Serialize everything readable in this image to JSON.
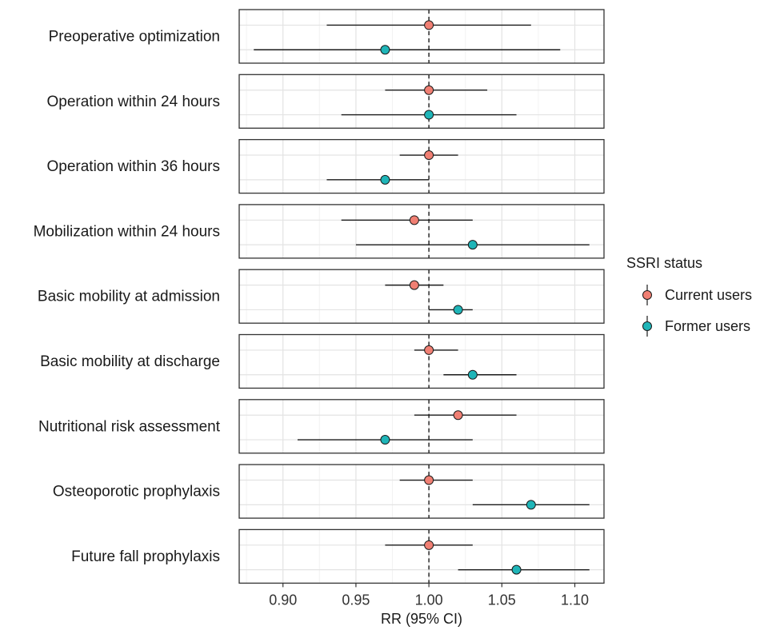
{
  "chart_data": {
    "type": "forest",
    "xlabel": "RR (95% CI)",
    "xlim": [
      0.87,
      1.12
    ],
    "xticks": [
      "0.90",
      "0.95",
      "1.00",
      "1.05",
      "1.10"
    ],
    "xtick_values": [
      0.9,
      0.95,
      1.0,
      1.05,
      1.1
    ],
    "reference_line": 1.0,
    "grid": true,
    "legend": {
      "title": "SSRI status",
      "placement": "right",
      "entries": [
        {
          "name": "Current users",
          "color": "#f07f73"
        },
        {
          "name": "Former users",
          "color": "#1fb5b8"
        }
      ]
    },
    "rows": [
      {
        "label": "Preoperative optimization",
        "current": {
          "rr": 1.0,
          "lo": 0.93,
          "hi": 1.07
        },
        "former": {
          "rr": 0.97,
          "lo": 0.88,
          "hi": 1.09
        }
      },
      {
        "label": "Operation within 24 hours",
        "current": {
          "rr": 1.0,
          "lo": 0.97,
          "hi": 1.04
        },
        "former": {
          "rr": 1.0,
          "lo": 0.94,
          "hi": 1.06
        }
      },
      {
        "label": "Operation within 36 hours",
        "current": {
          "rr": 1.0,
          "lo": 0.98,
          "hi": 1.02
        },
        "former": {
          "rr": 0.97,
          "lo": 0.93,
          "hi": 1.0
        }
      },
      {
        "label": "Mobilization within 24 hours",
        "current": {
          "rr": 0.99,
          "lo": 0.94,
          "hi": 1.03
        },
        "former": {
          "rr": 1.03,
          "lo": 0.95,
          "hi": 1.11
        }
      },
      {
        "label": "Basic mobility at admission",
        "current": {
          "rr": 0.99,
          "lo": 0.97,
          "hi": 1.01
        },
        "former": {
          "rr": 1.02,
          "lo": 1.0,
          "hi": 1.03
        }
      },
      {
        "label": "Basic mobility at discharge",
        "current": {
          "rr": 1.0,
          "lo": 0.99,
          "hi": 1.02
        },
        "former": {
          "rr": 1.03,
          "lo": 1.01,
          "hi": 1.06
        }
      },
      {
        "label": "Nutritional risk assessment",
        "current": {
          "rr": 1.02,
          "lo": 0.99,
          "hi": 1.06
        },
        "former": {
          "rr": 0.97,
          "lo": 0.91,
          "hi": 1.03
        }
      },
      {
        "label": "Osteoporotic prophylaxis",
        "current": {
          "rr": 1.0,
          "lo": 0.98,
          "hi": 1.03
        },
        "former": {
          "rr": 1.07,
          "lo": 1.03,
          "hi": 1.11
        }
      },
      {
        "label": "Future fall prophylaxis",
        "current": {
          "rr": 1.0,
          "lo": 0.97,
          "hi": 1.03
        },
        "former": {
          "rr": 1.06,
          "lo": 1.02,
          "hi": 1.11
        }
      }
    ]
  }
}
